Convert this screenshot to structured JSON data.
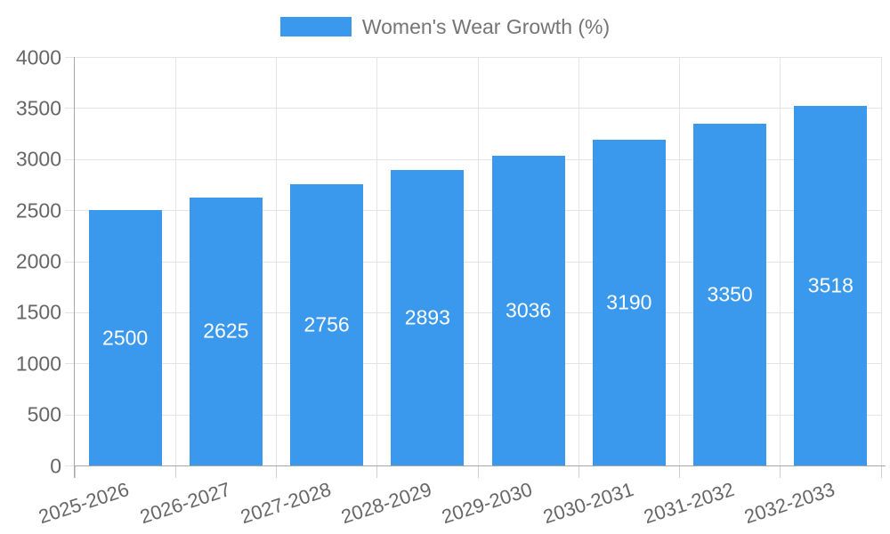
{
  "legend": {
    "label": "Women's Wear Growth (%)"
  },
  "chart_data": {
    "type": "bar",
    "title": "",
    "series_name": "Women's Wear Growth (%)",
    "categories": [
      "2025-2026",
      "2026-2027",
      "2027-2028",
      "2028-2029",
      "2029-2030",
      "2030-2031",
      "2031-2032",
      "2032-2033"
    ],
    "values": [
      2500,
      2625,
      2756,
      2893,
      3036,
      3190,
      3350,
      3518
    ],
    "xlabel": "",
    "ylabel": "",
    "ylim": [
      0,
      4000
    ],
    "ytick_step": 500,
    "yticks": [
      0,
      500,
      1000,
      1500,
      2000,
      2500,
      3000,
      3500,
      4000
    ],
    "grid": true,
    "legend_position": "top",
    "x_label_rotation": -18,
    "value_labels_inside_bars": true,
    "colors": {
      "bar": "#3B99ED",
      "value_label": "#FFFFFF",
      "axis_text": "#666666",
      "legend_text": "#757575",
      "gridline": "#E4E4E4",
      "axis_line": "#A6A6A6",
      "tick": "#CFCFCF"
    }
  }
}
